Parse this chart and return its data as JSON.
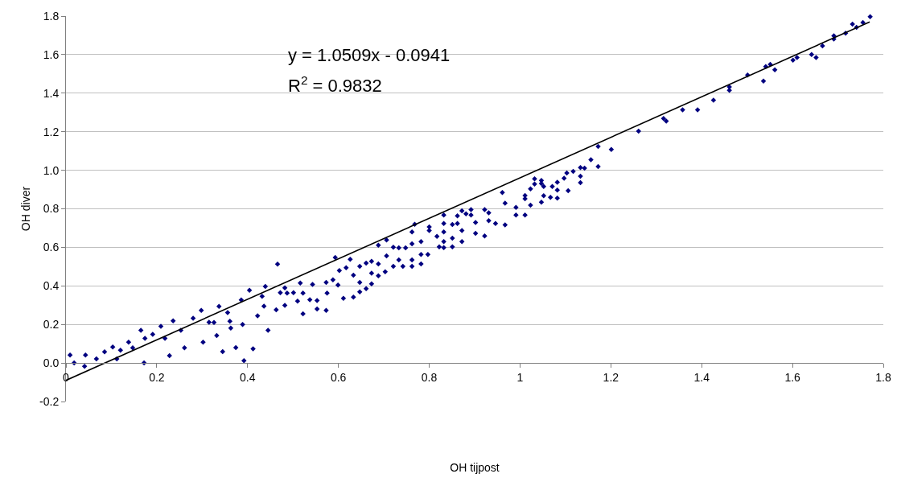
{
  "chart_data": {
    "type": "scatter",
    "xlabel": "OH tijpost",
    "ylabel": "OH diver",
    "annotations": [
      "y = 1.0509x - 0.0941",
      "R$^{2}$ = 0.9832"
    ],
    "xlim": [
      0,
      1.8
    ],
    "ylim": [
      -0.2,
      1.8
    ],
    "xticks": [
      0,
      0.2,
      0.4,
      0.6,
      0.8,
      1,
      1.2,
      1.4,
      1.6,
      1.8
    ],
    "yticks": [
      {
        "value": -0.2,
        "label": "-0.2"
      },
      {
        "value": 0,
        "label": "0.0"
      },
      0.2,
      0.4,
      0.6,
      0.8,
      {
        "value": 1,
        "label": "1.0"
      },
      1.2,
      1.4,
      1.6,
      1.8
    ],
    "grid": "y",
    "legend": false,
    "series": [
      {
        "color": "#000080",
        "marker": "diamond",
        "x": [
          1.771,
          1.755,
          1.741,
          1.732,
          1.717,
          1.691,
          1.691,
          1.666,
          1.652,
          1.642,
          1.61,
          1.601,
          1.561,
          1.551,
          1.541,
          1.536,
          1.501,
          1.461,
          1.461,
          1.426,
          1.391,
          1.358,
          1.322,
          1.316,
          1.261,
          1.201,
          1.172,
          1.172,
          1.156,
          1.142,
          1.133,
          1.133,
          1.133,
          1.117,
          1.103,
          1.106,
          1.097,
          1.082,
          1.082,
          1.082,
          1.067,
          1.071,
          1.052,
          1.052,
          1.047,
          1.047,
          1.047,
          1.032,
          1.032,
          1.023,
          1.023,
          1.011,
          1.011,
          1.011,
          0.991,
          0.991,
          0.967,
          0.967,
          0.961,
          0.946,
          0.931,
          0.931,
          0.922,
          0.922,
          0.902,
          0.902,
          0.892,
          0.892,
          0.881,
          0.872,
          0.872,
          0.872,
          0.862,
          0.862,
          0.851,
          0.851,
          0.851,
          0.832,
          0.832,
          0.832,
          0.832,
          0.832,
          0.817,
          0.822,
          0.8,
          0.8,
          0.797,
          0.782,
          0.782,
          0.782,
          0.768,
          0.762,
          0.762,
          0.762,
          0.762,
          0.748,
          0.742,
          0.733,
          0.733,
          0.721,
          0.721,
          0.706,
          0.706,
          0.703,
          0.688,
          0.688,
          0.688,
          0.673,
          0.673,
          0.673,
          0.661,
          0.661,
          0.647,
          0.647,
          0.647,
          0.633,
          0.633,
          0.626,
          0.617,
          0.611,
          0.602,
          0.599,
          0.593,
          0.588,
          0.575,
          0.573,
          0.573,
          0.553,
          0.553,
          0.543,
          0.537,
          0.522,
          0.522,
          0.516,
          0.51,
          0.501,
          0.487,
          0.482,
          0.482,
          0.472,
          0.463,
          0.432,
          0.436,
          0.422,
          0.361,
          0.363,
          0.326,
          0.332,
          0.302,
          0.392,
          0.389,
          0.412,
          0.261,
          0.228,
          0.172,
          0.445,
          0.374,
          0.345,
          0.009,
          0.018,
          0.041,
          0.043,
          0.067,
          0.085,
          0.103,
          0.112,
          0.12,
          0.138,
          0.147,
          0.165,
          0.174,
          0.191,
          0.209,
          0.218,
          0.236,
          0.253,
          0.28,
          0.298,
          0.315,
          0.337,
          0.356,
          0.386,
          0.404,
          0.439,
          0.466
        ],
        "values": [
          1.797,
          1.767,
          1.742,
          1.758,
          1.711,
          1.698,
          1.681,
          1.645,
          1.585,
          1.601,
          1.585,
          1.571,
          1.521,
          1.549,
          1.538,
          1.463,
          1.494,
          1.433,
          1.415,
          1.364,
          1.314,
          1.314,
          1.255,
          1.269,
          1.203,
          1.108,
          1.124,
          1.019,
          1.055,
          1.011,
          1.014,
          0.969,
          0.936,
          0.994,
          0.986,
          0.894,
          0.959,
          0.938,
          0.897,
          0.855,
          0.859,
          0.916,
          0.868,
          0.916,
          0.947,
          0.932,
          0.834,
          0.956,
          0.928,
          0.903,
          0.819,
          0.852,
          0.869,
          0.768,
          0.807,
          0.768,
          0.829,
          0.717,
          0.885,
          0.724,
          0.779,
          0.738,
          0.796,
          0.659,
          0.729,
          0.673,
          0.796,
          0.768,
          0.774,
          0.79,
          0.687,
          0.63,
          0.763,
          0.724,
          0.719,
          0.648,
          0.603,
          0.768,
          0.724,
          0.68,
          0.63,
          0.599,
          0.657,
          0.603,
          0.706,
          0.687,
          0.563,
          0.63,
          0.514,
          0.563,
          0.72,
          0.68,
          0.618,
          0.535,
          0.501,
          0.597,
          0.501,
          0.597,
          0.535,
          0.601,
          0.501,
          0.638,
          0.556,
          0.473,
          0.611,
          0.514,
          0.452,
          0.528,
          0.411,
          0.466,
          0.518,
          0.386,
          0.501,
          0.418,
          0.369,
          0.456,
          0.342,
          0.538,
          0.494,
          0.335,
          0.48,
          0.404,
          0.547,
          0.432,
          0.363,
          0.418,
          0.273,
          0.324,
          0.28,
          0.407,
          0.328,
          0.363,
          0.255,
          0.415,
          0.321,
          0.365,
          0.363,
          0.39,
          0.299,
          0.365,
          0.276,
          0.346,
          0.295,
          0.245,
          0.216,
          0.181,
          0.21,
          0.142,
          0.108,
          0.012,
          0.2,
          0.073,
          0.079,
          0.038,
          0.0,
          0.17,
          0.08,
          0.059,
          0.041,
          0.0,
          -0.017,
          0.041,
          0.021,
          0.058,
          0.083,
          0.021,
          0.066,
          0.108,
          0.079,
          0.17,
          0.128,
          0.149,
          0.19,
          0.128,
          0.219,
          0.17,
          0.232,
          0.273,
          0.211,
          0.294,
          0.261,
          0.327,
          0.377,
          0.397,
          0.513
        ]
      },
      {
        "type": "line",
        "color": "#000000",
        "line_style": "solid",
        "x": [
          0,
          1.77
        ],
        "values": [
          -0.09,
          1.77
        ]
      }
    ]
  }
}
